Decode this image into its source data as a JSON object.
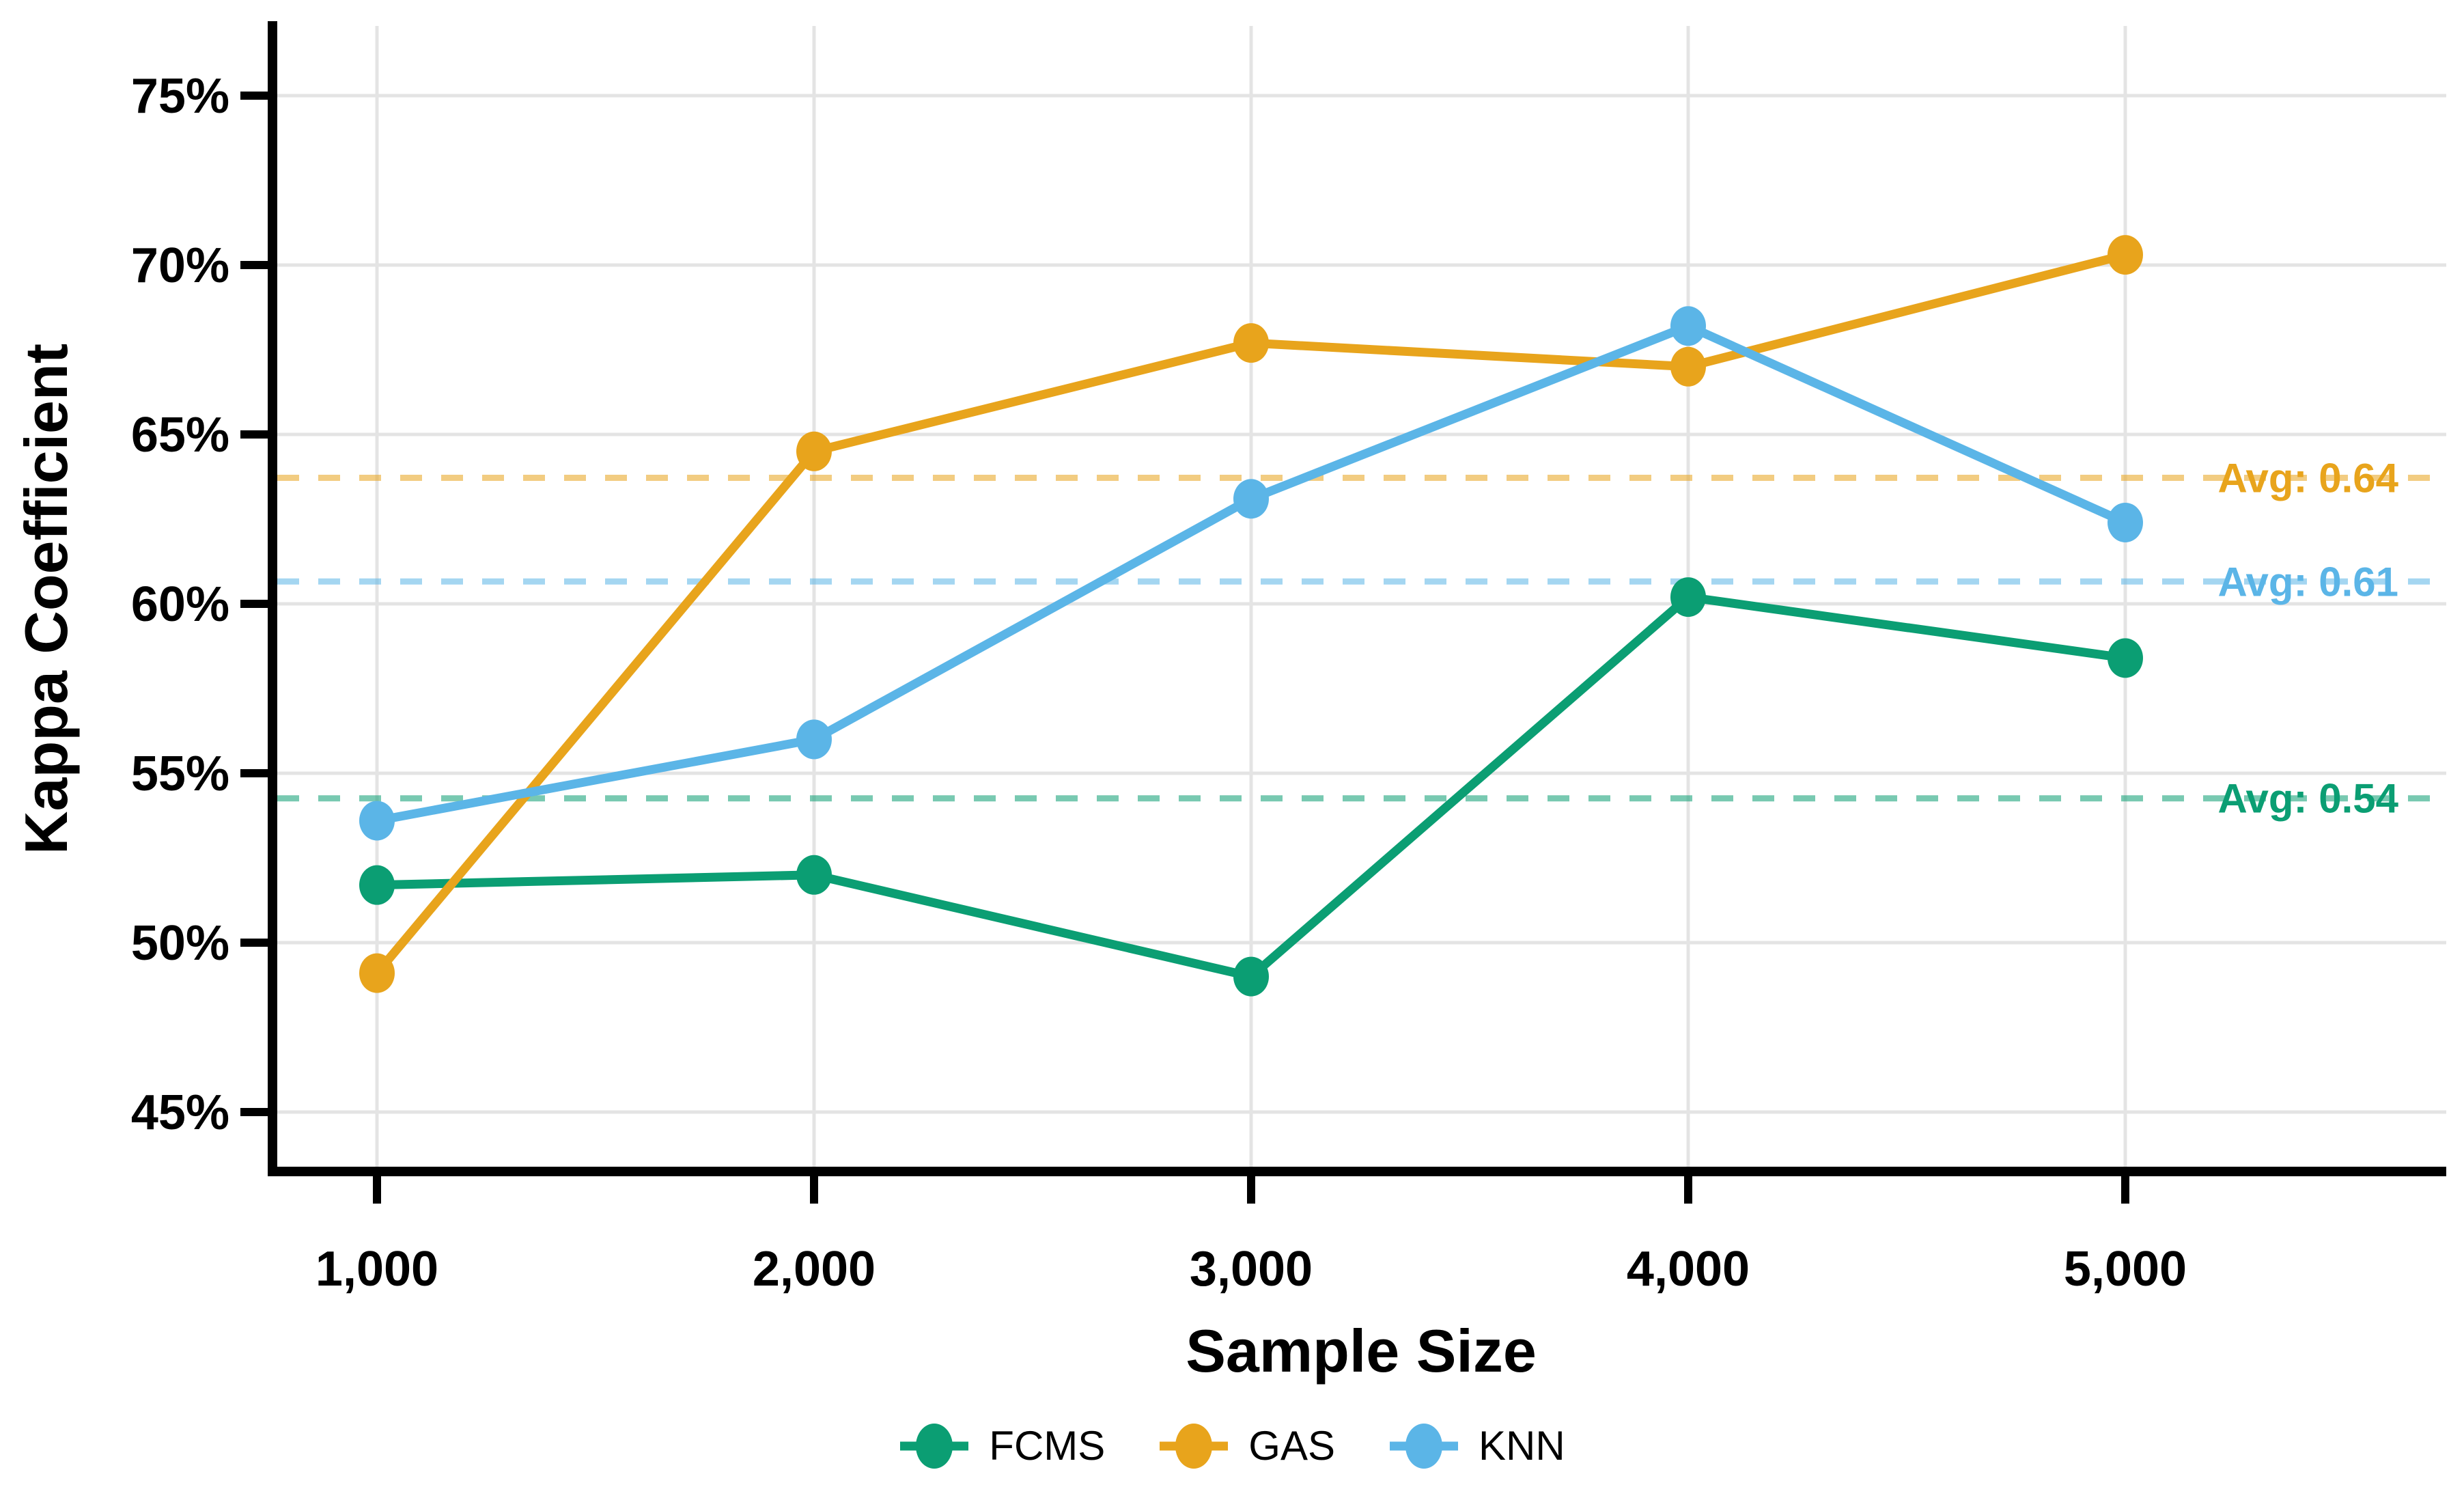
{
  "chart_data": {
    "type": "line",
    "title": "",
    "xlabel": "Sample Size",
    "ylabel": "Kappa Coefficient",
    "x": [
      1000,
      2000,
      3000,
      4000,
      5000
    ],
    "x_tick_labels": [
      "1,000",
      "2,000",
      "3,000",
      "4,000",
      "5,000"
    ],
    "y_ticks_pct": [
      45,
      50,
      55,
      60,
      65,
      70,
      75
    ],
    "y_tick_labels": [
      "45%",
      "50%",
      "55%",
      "60%",
      "65%",
      "70%",
      "75%"
    ],
    "ylim_pct": [
      42.9,
      77.0
    ],
    "grid": true,
    "legend_position": "bottom",
    "series": [
      {
        "name": "FCMS",
        "color": "#0B9E73",
        "values_pct": [
          51.7,
          52.0,
          49.0,
          60.2,
          58.4
        ],
        "avg_line_pct": 54.26,
        "avg_label": "Avg: 0.54"
      },
      {
        "name": "GAS",
        "color": "#E8A41C",
        "values_pct": [
          49.1,
          64.5,
          67.7,
          67.0,
          70.3
        ],
        "avg_line_pct": 63.72,
        "avg_label": "Avg: 0.64"
      },
      {
        "name": "KNN",
        "color": "#5BB5E7",
        "values_pct": [
          53.6,
          56.0,
          63.1,
          68.2,
          62.4
        ],
        "avg_line_pct": 60.66,
        "avg_label": "Avg: 0.61"
      }
    ]
  },
  "colors": {
    "background": "#FFFFFF",
    "gridline": "#E4E4E4",
    "axis": "#000000",
    "text": "#000000"
  }
}
